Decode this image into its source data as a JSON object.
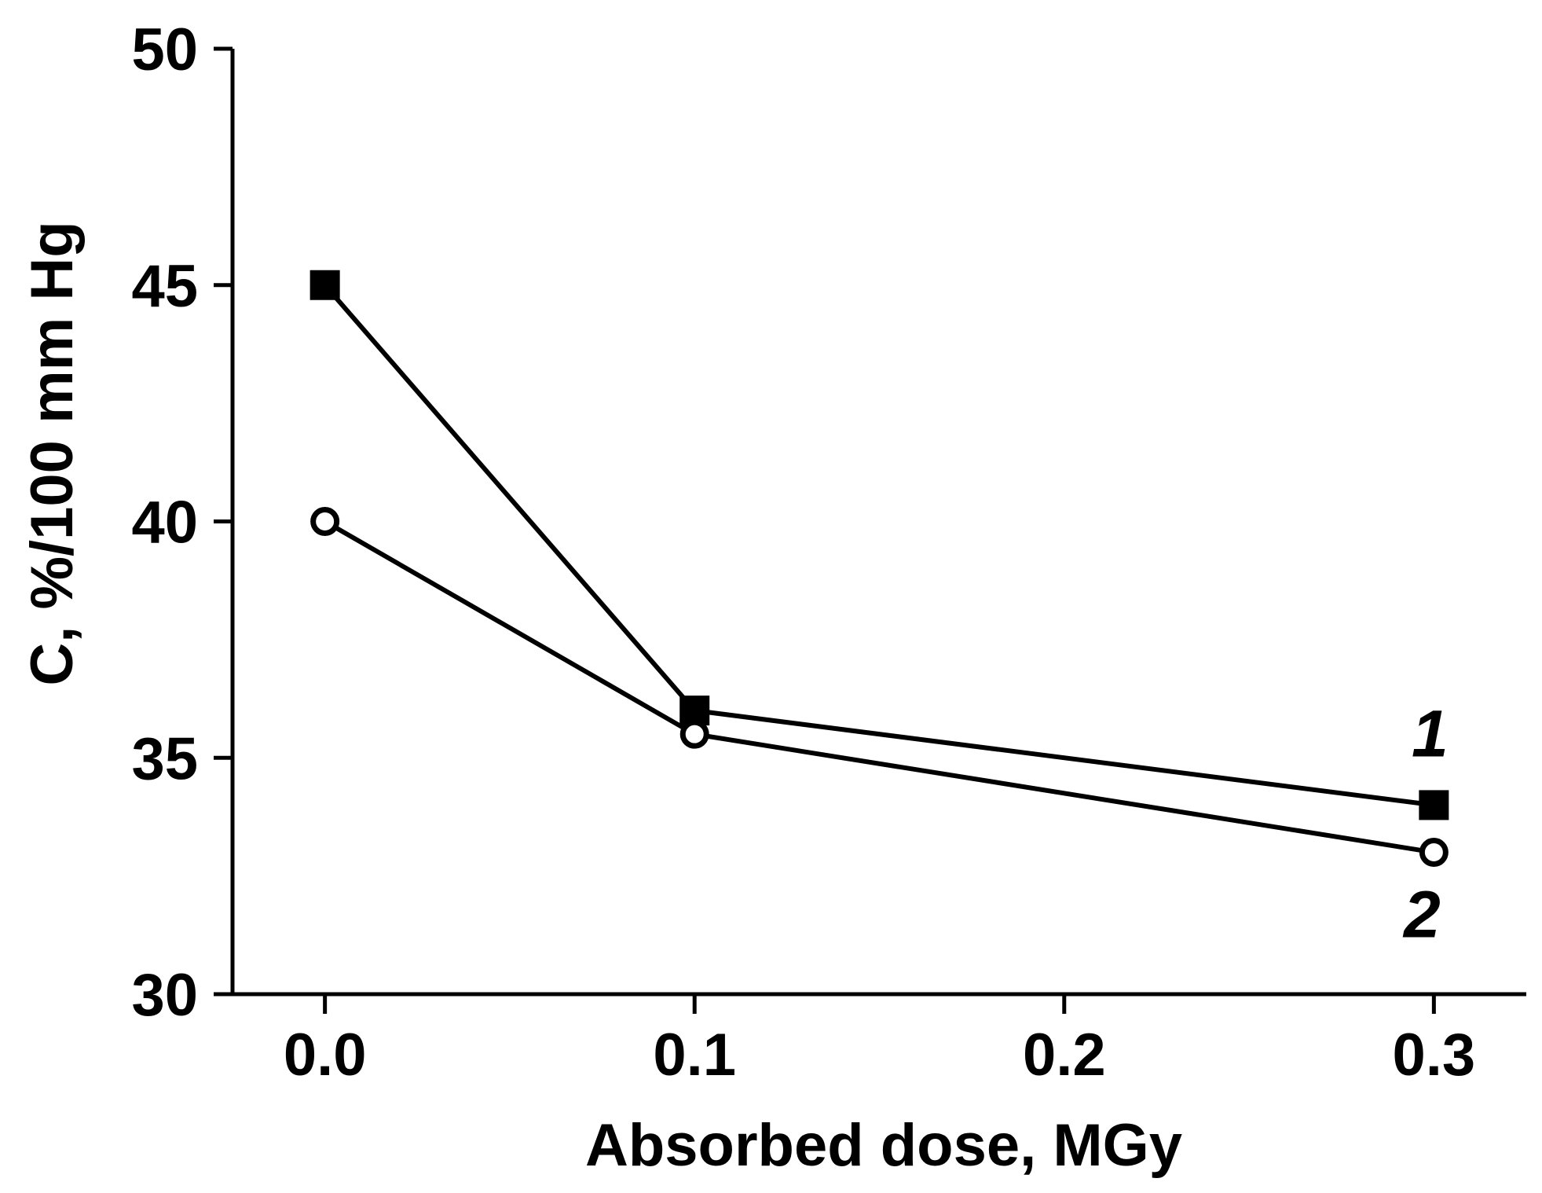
{
  "figure": {
    "background_color": "#ffffff",
    "foreground_color": "#000000"
  },
  "chart_data": {
    "type": "line",
    "title": "",
    "xlabel": "Absorbed dose, MGy",
    "ylabel": "C, %/100 mm Hg",
    "x_ticks": [
      0.0,
      0.1,
      0.2,
      0.3
    ],
    "x_tick_labels": [
      "0.0",
      "0.1",
      "0.2",
      "0.3"
    ],
    "y_ticks": [
      30,
      35,
      40,
      45,
      50
    ],
    "y_tick_labels": [
      "30",
      "35",
      "40",
      "45",
      "50"
    ],
    "xlim": [
      -0.025,
      0.325
    ],
    "ylim": [
      30,
      50
    ],
    "grid": false,
    "legend_position": "end-of-line labels",
    "series": [
      {
        "name": "1",
        "marker": "filled-square",
        "marker_color": "#000000",
        "line_color": "#000000",
        "x": [
          0.0,
          0.1,
          0.3
        ],
        "y": [
          45,
          36,
          34
        ]
      },
      {
        "name": "2",
        "marker": "open-circle",
        "marker_color": "#ffffff",
        "line_color": "#000000",
        "x": [
          0.0,
          0.1,
          0.3
        ],
        "y": [
          40,
          35.5,
          33
        ]
      }
    ]
  }
}
